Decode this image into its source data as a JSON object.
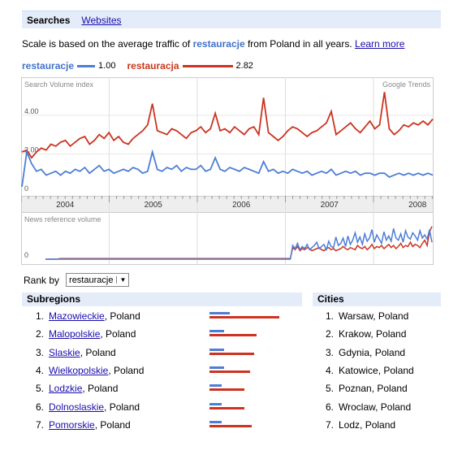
{
  "tabs": {
    "active": "Searches",
    "link": "Websites"
  },
  "scale_text": {
    "prefix": "Scale is based on the average traffic of ",
    "term": "restauracje",
    "suffix": " from Poland in all years. ",
    "learn_more": "Learn more"
  },
  "legend": [
    {
      "term": "restauracje",
      "value": "1.00",
      "color": "#4d7ed6"
    },
    {
      "term": "restauracja",
      "value": "2.82",
      "color": "#cc3320"
    }
  ],
  "chart_data": {
    "type": "line",
    "panels": [
      {
        "label": "Search Volume index",
        "watermark": "Google Trends",
        "ylim": [
          0,
          5.8
        ],
        "yticks": [
          "4.00",
          "2.00",
          "0"
        ],
        "series": [
          {
            "name": "restauracja",
            "color": "#cc3320",
            "values": [
              2.1,
              2.2,
              1.8,
              2.1,
              2.3,
              2.2,
              2.5,
              2.4,
              2.6,
              2.7,
              2.4,
              2.6,
              2.8,
              2.9,
              2.5,
              2.7,
              3.0,
              2.8,
              3.1,
              2.7,
              2.9,
              2.6,
              2.5,
              2.8,
              3.0,
              3.2,
              3.5,
              4.6,
              3.2,
              3.1,
              3.0,
              3.3,
              3.2,
              3.0,
              2.8,
              3.1,
              3.2,
              3.4,
              3.1,
              3.3,
              4.1,
              3.2,
              3.3,
              3.1,
              3.4,
              3.2,
              3.0,
              3.3,
              3.4,
              3.0,
              4.9,
              3.1,
              2.9,
              2.7,
              2.9,
              3.2,
              3.4,
              3.3,
              3.1,
              2.9,
              3.1,
              3.2,
              3.4,
              3.6,
              4.2,
              3.0,
              3.2,
              3.4,
              3.6,
              3.3,
              3.1,
              3.4,
              3.7,
              3.3,
              3.5,
              5.2,
              3.3,
              3.0,
              3.2,
              3.5,
              3.4,
              3.6,
              3.5,
              3.7,
              3.5,
              3.8
            ]
          },
          {
            "name": "restauracje",
            "color": "#4d7ed6",
            "values": [
              0.3,
              2.1,
              1.5,
              1.1,
              1.2,
              0.9,
              1.0,
              1.1,
              0.9,
              1.1,
              1.0,
              1.2,
              1.1,
              1.3,
              1.0,
              1.2,
              1.4,
              1.1,
              1.2,
              1.0,
              1.1,
              1.2,
              1.1,
              1.3,
              1.2,
              1.0,
              1.1,
              2.1,
              1.2,
              1.1,
              1.3,
              1.2,
              1.4,
              1.1,
              1.3,
              1.2,
              1.2,
              1.4,
              1.1,
              1.2,
              1.8,
              1.2,
              1.1,
              1.3,
              1.2,
              1.1,
              1.3,
              1.2,
              1.1,
              1.0,
              1.6,
              1.1,
              1.2,
              1.0,
              1.1,
              1.0,
              1.2,
              1.1,
              1.0,
              1.1,
              0.9,
              1.0,
              1.1,
              1.0,
              1.2,
              0.9,
              1.0,
              1.1,
              1.0,
              1.1,
              0.9,
              1.0,
              1.0,
              0.9,
              1.0,
              1.0,
              0.8,
              0.9,
              1.0,
              0.9,
              1.0,
              0.9,
              1.0,
              0.9,
              1.0,
              0.9
            ]
          }
        ]
      },
      {
        "label": "News reference volume",
        "yticks": [
          "0"
        ],
        "ylim": [
          0,
          4
        ],
        "series": [
          {
            "name": "restauracja",
            "color": "#cc3320",
            "values": [
              0,
              0,
              0,
              0,
              0,
              0,
              0.05,
              0.05,
              0.05,
              0.05,
              0.05,
              0.05,
              0.05,
              0.05,
              0.05,
              0.05,
              0.05,
              0.05,
              0.05,
              0.05,
              0.05,
              0.05,
              0.05,
              0.05,
              0.05,
              0.05,
              0.05,
              0.05,
              0.05,
              0.05,
              0.05,
              0.05,
              0.05,
              0.05,
              0.05,
              0.05,
              0.05,
              0.05,
              0.05,
              0.05,
              0.05,
              0.05,
              0.05,
              0.05,
              0.05,
              0.05,
              0.05,
              0.05,
              0.05,
              0.05,
              0.05,
              0.05,
              0.05,
              0.05,
              0.05,
              0.05,
              0.05,
              0.05,
              0.05,
              0.05,
              0.05,
              0.05,
              0.05,
              0.05,
              0.05,
              0.05,
              0.05,
              0.05,
              0.05,
              0.05,
              0.05,
              0.05,
              0.05,
              0.05,
              0.05,
              0.05,
              0.05,
              0.05,
              0.05,
              0.05,
              0.05,
              0.05,
              0.05,
              0.05,
              0.05,
              0.05,
              0.05,
              0.05,
              0.05,
              0.05,
              0.05,
              0.05,
              0.05,
              0.05,
              0.05,
              0.05,
              0.05,
              0.05,
              0.05,
              0.05,
              0.05,
              0.05,
              0.05,
              1.1,
              0.9,
              1.2,
              0.8,
              1.0,
              0.9,
              1.1,
              1.0,
              0.8,
              0.9,
              1.0,
              1.1,
              0.9,
              0.8,
              1.0,
              1.1,
              0.9,
              1.0,
              0.8,
              0.9,
              1.0,
              1.2,
              1.0,
              0.9,
              1.1,
              1.0,
              0.9,
              1.3,
              1.1,
              1.0,
              1.2,
              0.9,
              1.1,
              1.4,
              1.0,
              1.2,
              1.1,
              1.3,
              1.0,
              1.2,
              1.4,
              1.1,
              1.3,
              1.0,
              1.2,
              1.5,
              1.1,
              1.3,
              1.2,
              1.6,
              1.2,
              1.4,
              1.3,
              1.1,
              1.5,
              1.8,
              1.3,
              2.6,
              3.1
            ]
          },
          {
            "name": "restauracje",
            "color": "#4d7ed6",
            "values": [
              0,
              0,
              0,
              0,
              0,
              0,
              0,
              0,
              0,
              0,
              0,
              0,
              0,
              0,
              0,
              0,
              0,
              0,
              0,
              0,
              0,
              0,
              0,
              0,
              0,
              0,
              0,
              0,
              0,
              0,
              0,
              0,
              0,
              0,
              0,
              0,
              0,
              0,
              0,
              0,
              0,
              0,
              0,
              0,
              0,
              0,
              0,
              0,
              0,
              0,
              0,
              0,
              0,
              0,
              0,
              0,
              0,
              0,
              0,
              0,
              0,
              0,
              0,
              0,
              0,
              0,
              0,
              0,
              0,
              0,
              0,
              0,
              0,
              0,
              0,
              0,
              0,
              0,
              0,
              0,
              0,
              0,
              0,
              0,
              0,
              0,
              0,
              0,
              0,
              0,
              0,
              0,
              0,
              0,
              0,
              0,
              0,
              0,
              0,
              0,
              0,
              0,
              0,
              1.3,
              1.0,
              1.5,
              0.9,
              1.2,
              1.0,
              1.4,
              0.9,
              1.1,
              1.3,
              1.6,
              1.0,
              1.2,
              1.4,
              0.9,
              1.7,
              1.2,
              1.1,
              2.1,
              1.3,
              1.5,
              2.0,
              1.2,
              2.2,
              1.4,
              1.8,
              2.5,
              1.6,
              2.1,
              1.4,
              2.4,
              1.7,
              2.0,
              2.8,
              1.6,
              2.3,
              1.9,
              1.5,
              2.6,
              1.8,
              2.2,
              1.7,
              2.9,
              2.0,
              1.8,
              2.4,
              1.6,
              2.7,
              2.1,
              1.9,
              2.5,
              2.2,
              1.8,
              2.7,
              2.0,
              2.3,
              1.9,
              2.8,
              1.6
            ]
          }
        ]
      }
    ],
    "x_ticks": [
      "2004",
      "2005",
      "2006",
      "2007",
      "2008"
    ]
  },
  "rank_by": {
    "label": "Rank by",
    "selected": "restauracje"
  },
  "subregions": {
    "title": "Subregions",
    "items": [
      {
        "rank": "1.",
        "name": "Mazowieckie",
        "suffix": ", Poland",
        "blue": 0.25,
        "red": 0.86
      },
      {
        "rank": "2.",
        "name": "Malopolskie",
        "suffix": ", Poland",
        "blue": 0.18,
        "red": 0.58
      },
      {
        "rank": "3.",
        "name": "Slaskie",
        "suffix": ", Poland",
        "blue": 0.18,
        "red": 0.55
      },
      {
        "rank": "4.",
        "name": "Wielkopolskie",
        "suffix": ", Poland",
        "blue": 0.18,
        "red": 0.5
      },
      {
        "rank": "5.",
        "name": "Lodzkie",
        "suffix": ", Poland",
        "blue": 0.15,
        "red": 0.43
      },
      {
        "rank": "6.",
        "name": "Dolnoslaskie",
        "suffix": ", Poland",
        "blue": 0.15,
        "red": 0.43
      },
      {
        "rank": "7.",
        "name": "Pomorskie",
        "suffix": ", Poland",
        "blue": 0.15,
        "red": 0.52
      }
    ]
  },
  "cities": {
    "title": "Cities",
    "items": [
      {
        "rank": "1.",
        "name": "Warsaw, Poland"
      },
      {
        "rank": "2.",
        "name": "Krakow, Poland"
      },
      {
        "rank": "3.",
        "name": "Gdynia, Poland"
      },
      {
        "rank": "4.",
        "name": "Katowice, Poland"
      },
      {
        "rank": "5.",
        "name": "Poznan, Poland"
      },
      {
        "rank": "6.",
        "name": "Wroclaw, Poland"
      },
      {
        "rank": "7.",
        "name": "Lodz, Poland"
      }
    ]
  }
}
